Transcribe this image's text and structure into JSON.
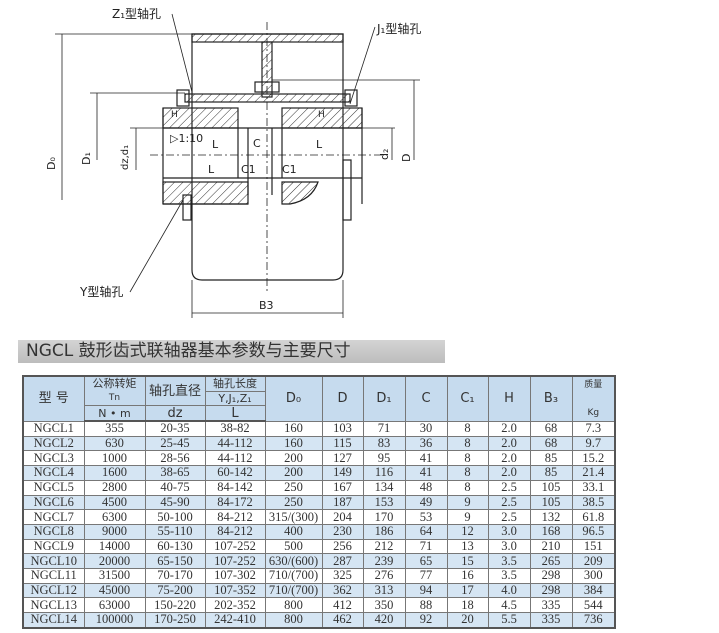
{
  "drawing": {
    "labels": {
      "z1_bore": "Z₁型轴孔",
      "j1_bore": "J₁型轴孔",
      "y_bore": "Y型轴孔",
      "d0": "D₀",
      "d1": "D₁",
      "dz_d1": "dz,d₁",
      "d2": "d₂",
      "d": "D",
      "b3": "B3",
      "l_left": "L",
      "l_right": "L",
      "l_lower": "L",
      "c": "C",
      "c1_left": "C1",
      "c1_right": "C1",
      "h_left": "H",
      "h_right": "H",
      "taper": "▷1:10"
    }
  },
  "title": "NGCL 鼓形齿式联轴器基本参数与主要尺寸",
  "table": {
    "headers": {
      "model": "型  号",
      "torque": "公称转矩",
      "torque_sym": "Tn",
      "torque_unit": "N • m",
      "bore_dia": "轴孔直径",
      "bore_dia_sym": "dz",
      "bore_len": "轴孔长度",
      "bore_len_types": "Y,J₁,Z₁",
      "bore_len_sym": "L",
      "d0": "D₀",
      "d": "D",
      "d1": "D₁",
      "c": "C",
      "c1": "C₁",
      "h": "H",
      "b3": "B₃",
      "mass": "质量",
      "mass_unit": "Kg"
    },
    "rows": [
      [
        "NGCL1",
        "355",
        "20-35",
        "38-82",
        "160",
        "103",
        "71",
        "30",
        "8",
        "2.0",
        "68",
        "7.3"
      ],
      [
        "NGCL2",
        "630",
        "25-45",
        "44-112",
        "160",
        "115",
        "83",
        "36",
        "8",
        "2.0",
        "68",
        "9.7"
      ],
      [
        "NGCL3",
        "1000",
        "28-56",
        "44-112",
        "200",
        "127",
        "95",
        "41",
        "8",
        "2.0",
        "85",
        "15.2"
      ],
      [
        "NGCL4",
        "1600",
        "38-65",
        "60-142",
        "200",
        "149",
        "116",
        "41",
        "8",
        "2.0",
        "85",
        "21.4"
      ],
      [
        "NGCL5",
        "2800",
        "40-75",
        "84-142",
        "250",
        "167",
        "134",
        "48",
        "8",
        "2.5",
        "105",
        "33.1"
      ],
      [
        "NGCL6",
        "4500",
        "45-90",
        "84-172",
        "250",
        "187",
        "153",
        "49",
        "9",
        "2.5",
        "105",
        "38.5"
      ],
      [
        "NGCL7",
        "6300",
        "50-100",
        "84-212",
        "315/(300)",
        "204",
        "170",
        "53",
        "9",
        "2.5",
        "132",
        "61.8"
      ],
      [
        "NGCL8",
        "9000",
        "55-110",
        "84-212",
        "400",
        "230",
        "186",
        "64",
        "12",
        "3.0",
        "168",
        "96.5"
      ],
      [
        "NGCL9",
        "14000",
        "60-130",
        "107-252",
        "500",
        "256",
        "212",
        "71",
        "13",
        "3.0",
        "210",
        "151"
      ],
      [
        "NGCL10",
        "20000",
        "65-150",
        "107-252",
        "630/(600)",
        "287",
        "239",
        "65",
        "15",
        "3.5",
        "265",
        "209"
      ],
      [
        "NGCL11",
        "31500",
        "70-170",
        "107-302",
        "710/(700)",
        "325",
        "276",
        "77",
        "16",
        "3.5",
        "298",
        "300"
      ],
      [
        "NGCL12",
        "45000",
        "75-200",
        "107-352",
        "710/(700)",
        "362",
        "313",
        "94",
        "17",
        "4.0",
        "298",
        "384"
      ],
      [
        "NGCL13",
        "63000",
        "150-220",
        "202-352",
        "800",
        "412",
        "350",
        "88",
        "18",
        "4.5",
        "335",
        "544"
      ],
      [
        "NGCL14",
        "100000",
        "170-250",
        "242-410",
        "800",
        "462",
        "420",
        "92",
        "20",
        "5.5",
        "335",
        "736"
      ]
    ]
  }
}
